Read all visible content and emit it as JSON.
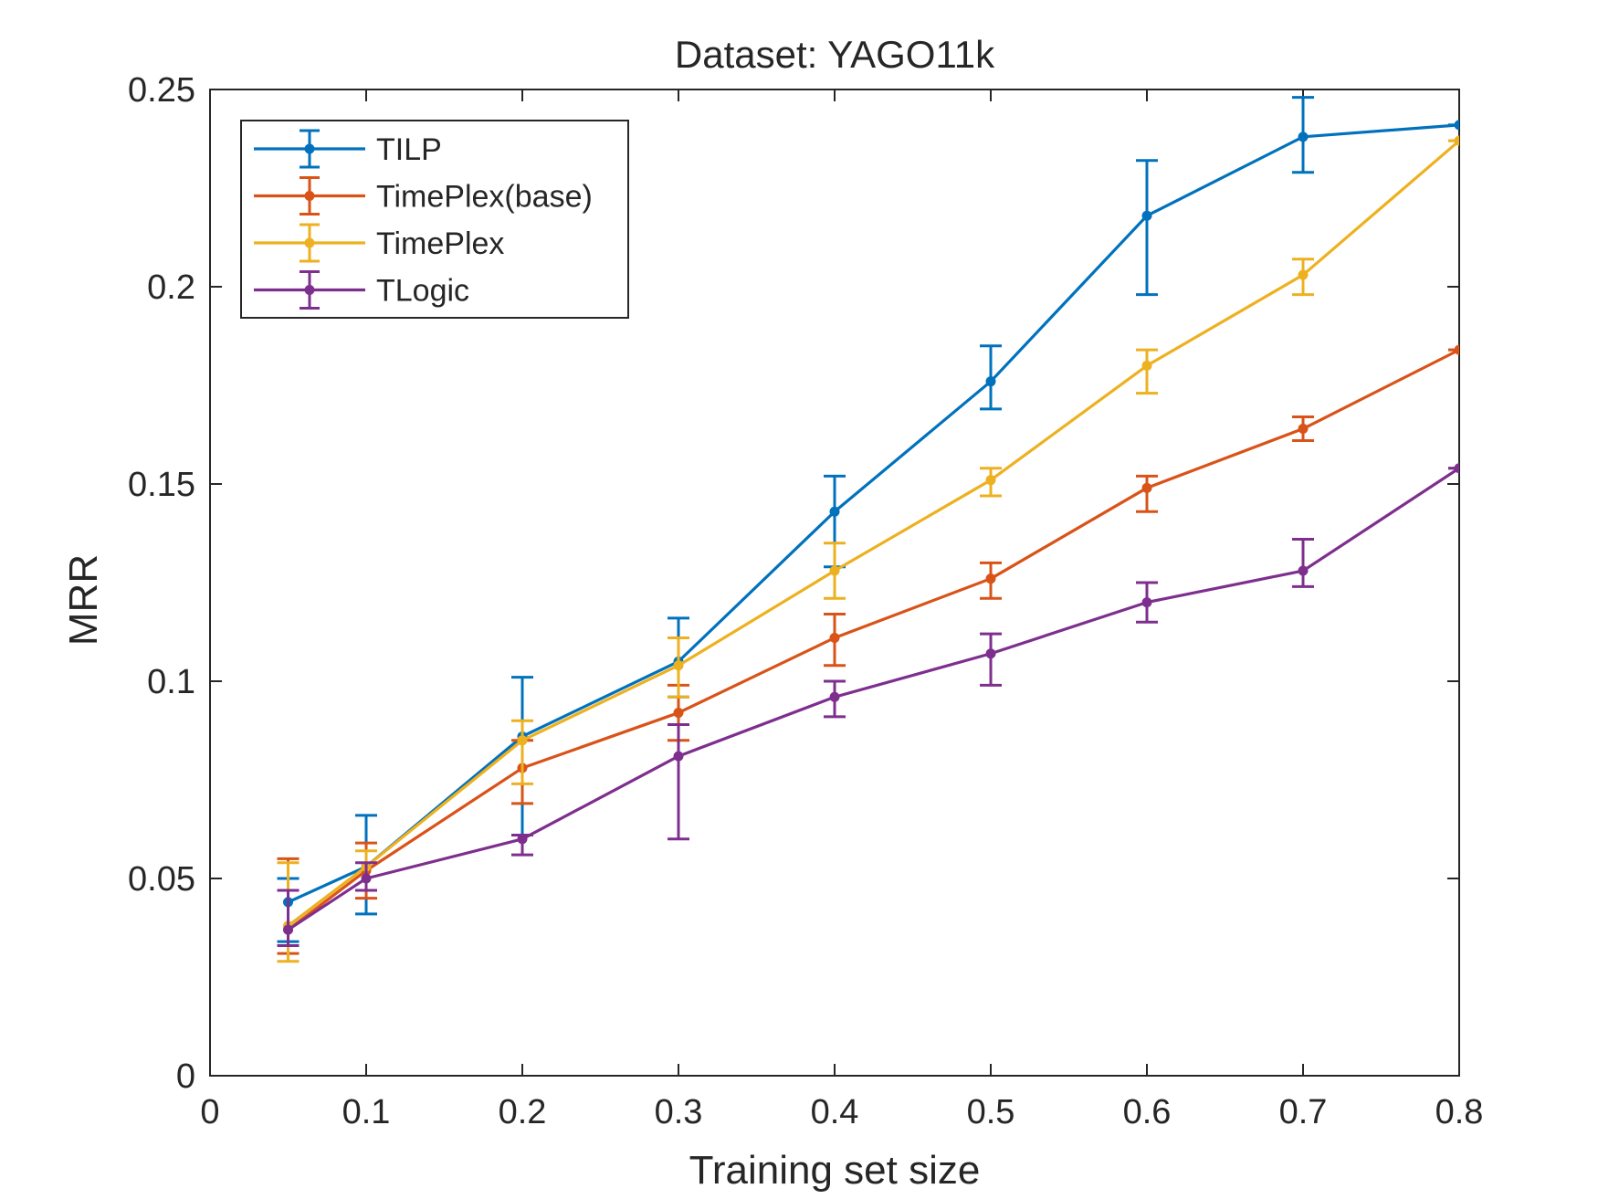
{
  "chart_data": {
    "type": "line",
    "title": "Dataset: YAGO11k",
    "xlabel": "Training set size",
    "ylabel": "MRR",
    "xlim": [
      0,
      0.8
    ],
    "ylim": [
      0,
      0.25
    ],
    "x_ticks": [
      "0",
      "0.1",
      "0.2",
      "0.3",
      "0.4",
      "0.5",
      "0.6",
      "0.7",
      "0.8"
    ],
    "y_ticks": [
      "0",
      "0.05",
      "0.1",
      "0.15",
      "0.2",
      "0.25"
    ],
    "x_tick_values": [
      0,
      0.1,
      0.2,
      0.3,
      0.4,
      0.5,
      0.6,
      0.7,
      0.8
    ],
    "y_tick_values": [
      0,
      0.05,
      0.1,
      0.15,
      0.2,
      0.25
    ],
    "grid": false,
    "legend_position": "top-left",
    "x": [
      0.05,
      0.1,
      0.2,
      0.3,
      0.4,
      0.5,
      0.6,
      0.7,
      0.8
    ],
    "series": [
      {
        "name": "TILP",
        "color": "#0072BD",
        "values": [
          0.044,
          0.053,
          0.086,
          0.105,
          0.143,
          0.176,
          0.218,
          0.238,
          0.241
        ],
        "error_low": [
          0.034,
          0.041,
          0.061,
          0.096,
          0.129,
          0.169,
          0.198,
          0.229,
          0.241
        ],
        "error_high": [
          0.05,
          0.066,
          0.101,
          0.116,
          0.152,
          0.185,
          0.232,
          0.248,
          0.241
        ]
      },
      {
        "name": "TimePlex(base)",
        "color": "#D95319",
        "values": [
          0.037,
          0.052,
          0.078,
          0.092,
          0.111,
          0.126,
          0.149,
          0.164,
          0.184
        ],
        "error_low": [
          0.031,
          0.045,
          0.069,
          0.085,
          0.104,
          0.121,
          0.143,
          0.161,
          0.184
        ],
        "error_high": [
          0.055,
          0.059,
          0.085,
          0.099,
          0.117,
          0.13,
          0.152,
          0.167,
          0.184
        ]
      },
      {
        "name": "TimePlex",
        "color": "#EDB120",
        "values": [
          0.038,
          0.053,
          0.085,
          0.104,
          0.128,
          0.151,
          0.18,
          0.203,
          0.237
        ],
        "error_low": [
          0.029,
          0.047,
          0.074,
          0.096,
          0.121,
          0.147,
          0.173,
          0.198,
          0.237
        ],
        "error_high": [
          0.054,
          0.057,
          0.09,
          0.111,
          0.135,
          0.154,
          0.184,
          0.207,
          0.237
        ]
      },
      {
        "name": "TLogic",
        "color": "#7E2F8E",
        "values": [
          0.037,
          0.05,
          0.06,
          0.081,
          0.096,
          0.107,
          0.12,
          0.128,
          0.154
        ],
        "error_low": [
          0.033,
          0.047,
          0.056,
          0.06,
          0.091,
          0.099,
          0.115,
          0.124,
          0.154
        ],
        "error_high": [
          0.047,
          0.054,
          0.061,
          0.089,
          0.1,
          0.112,
          0.125,
          0.136,
          0.154
        ]
      }
    ]
  }
}
